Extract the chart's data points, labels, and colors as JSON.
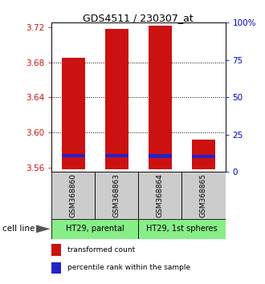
{
  "title": "GDS4511 / 230307_at",
  "samples": [
    "GSM368860",
    "GSM368863",
    "GSM368864",
    "GSM368865"
  ],
  "cell_line_groups": [
    {
      "label": "HT29, parental",
      "start": 0,
      "end": 2
    },
    {
      "label": "HT29, 1st spheres",
      "start": 2,
      "end": 4
    }
  ],
  "red_bar_tops": [
    3.685,
    3.718,
    3.722,
    3.592
  ],
  "blue_bar_tops": [
    3.5715,
    3.5715,
    3.571,
    3.5705
  ],
  "red_bar_base": 3.558,
  "blue_bar_height": 0.004,
  "ylim_left": [
    3.555,
    3.725
  ],
  "yticks_left": [
    3.56,
    3.6,
    3.64,
    3.68,
    3.72
  ],
  "ylim_right": [
    0,
    100
  ],
  "yticks_right": [
    0,
    25,
    50,
    75,
    100
  ],
  "ytick_labels_right": [
    "0",
    "25",
    "50",
    "75",
    "100%"
  ],
  "bar_width": 0.55,
  "red_color": "#cc1111",
  "blue_color": "#2222cc",
  "left_tick_color": "#cc1111",
  "right_tick_color": "#0000cc",
  "legend_red": "transformed count",
  "legend_blue": "percentile rank within the sample",
  "cell_line_label": "cell line",
  "sample_box_color": "#cccccc",
  "cell_line_box_color": "#88ee88",
  "gridline_yticks": [
    3.6,
    3.64,
    3.68
  ]
}
